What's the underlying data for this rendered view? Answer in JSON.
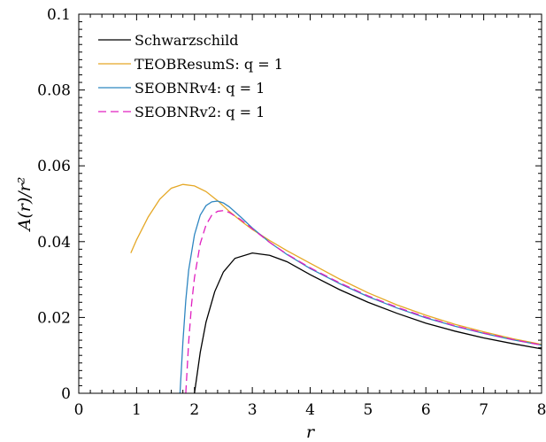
{
  "chart_data": {
    "type": "line",
    "xlabel": "r",
    "ylabel": "A(r)/r²",
    "xlim": [
      0,
      8
    ],
    "ylim": [
      0,
      0.1
    ],
    "xticks": [
      "0",
      "1",
      "2",
      "3",
      "4",
      "5",
      "6",
      "7",
      "8"
    ],
    "yticks": [
      "0",
      "0.02",
      "0.04",
      "0.06",
      "0.08",
      "0.1"
    ],
    "grid": false,
    "legend_position": "top-left",
    "series": [
      {
        "name": "Schwarzschild",
        "color": "#000000",
        "dash": "solid",
        "x": [
          2.0,
          2.1,
          2.2,
          2.35,
          2.5,
          2.7,
          3.0,
          3.3,
          3.6,
          4.0,
          4.5,
          5.0,
          5.5,
          6.0,
          6.5,
          7.0,
          7.5,
          8.0
        ],
        "y": [
          0.0,
          0.0108,
          0.0188,
          0.0268,
          0.032,
          0.0356,
          0.037,
          0.0364,
          0.0347,
          0.0313,
          0.0274,
          0.024,
          0.0211,
          0.0185,
          0.0164,
          0.0146,
          0.0131,
          0.0117
        ]
      },
      {
        "name": "TEOBResumS: q = 1",
        "color": "#E5A826",
        "dash": "solid",
        "x": [
          0.9,
          1.0,
          1.2,
          1.4,
          1.6,
          1.8,
          2.0,
          2.2,
          2.4,
          2.6,
          2.8,
          3.0,
          3.3,
          3.6,
          4.0,
          4.5,
          5.0,
          5.5,
          6.0,
          6.5,
          7.0,
          7.5,
          8.0
        ],
        "y": [
          0.037,
          0.0405,
          0.0465,
          0.0512,
          0.0541,
          0.0551,
          0.0547,
          0.0532,
          0.0508,
          0.048,
          0.0455,
          0.0432,
          0.0403,
          0.0376,
          0.0343,
          0.0302,
          0.0265,
          0.0233,
          0.0206,
          0.0182,
          0.0162,
          0.0144,
          0.0129
        ]
      },
      {
        "name": "SEOBNRv4: q = 1",
        "color": "#2E86C1",
        "dash": "solid",
        "x": [
          1.75,
          1.8,
          1.85,
          1.9,
          2.0,
          2.1,
          2.2,
          2.3,
          2.4,
          2.5,
          2.6,
          2.8,
          3.0,
          3.3,
          3.6,
          4.0,
          4.5,
          5.0,
          5.5,
          6.0,
          6.5,
          7.0,
          7.5,
          8.0
        ],
        "y": [
          0.0,
          0.0135,
          0.0245,
          0.0325,
          0.0418,
          0.047,
          0.0495,
          0.0505,
          0.0507,
          0.0502,
          0.0492,
          0.0465,
          0.0436,
          0.0398,
          0.0366,
          0.0329,
          0.029,
          0.0255,
          0.0225,
          0.0199,
          0.0177,
          0.0158,
          0.0141,
          0.0127
        ]
      },
      {
        "name": "SEOBNRv2: q = 1",
        "color": "#E020C0",
        "dash": "dashed",
        "x": [
          1.85,
          1.9,
          1.95,
          2.0,
          2.1,
          2.2,
          2.3,
          2.4,
          2.5,
          2.6,
          2.8,
          3.0,
          3.3,
          3.6,
          4.0,
          4.5,
          5.0,
          5.5,
          6.0,
          6.5,
          7.0,
          7.5,
          8.0
        ],
        "y": [
          0.0,
          0.0135,
          0.0235,
          0.0305,
          0.0395,
          0.0444,
          0.047,
          0.048,
          0.0482,
          0.0477,
          0.0458,
          0.0434,
          0.0398,
          0.0367,
          0.0331,
          0.0292,
          0.0257,
          0.0227,
          0.0201,
          0.0178,
          0.0159,
          0.0142,
          0.0127
        ]
      }
    ]
  }
}
